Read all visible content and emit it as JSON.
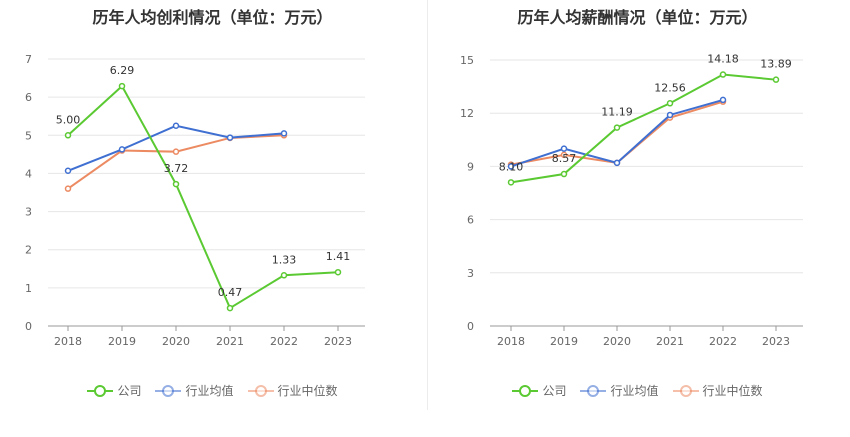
{
  "chart_data": [
    {
      "type": "line",
      "title": "历年人均创利情况（单位：万元）",
      "categories": [
        "2018",
        "2019",
        "2020",
        "2021",
        "2022",
        "2023"
      ],
      "ylim": [
        0,
        7
      ],
      "yticks": [
        "0",
        "1",
        "2",
        "3",
        "4",
        "5",
        "6",
        "7"
      ],
      "grid": true,
      "legend_position": "bottom",
      "series": [
        {
          "name": "公司",
          "color": "#5ac932",
          "values": [
            5.0,
            6.29,
            3.72,
            0.47,
            1.33,
            1.41
          ],
          "labels": [
            "5.00",
            "6.29",
            "3.72",
            "0.47",
            "1.33",
            "1.41"
          ]
        },
        {
          "name": "行业均值",
          "color": "#3f6fd1",
          "values": [
            4.07,
            4.63,
            5.25,
            4.94,
            5.05,
            null
          ]
        },
        {
          "name": "行业中位数",
          "color": "#ec8a62",
          "values": [
            3.6,
            4.6,
            4.57,
            4.93,
            5.0,
            null
          ]
        }
      ]
    },
    {
      "type": "line",
      "title": "历年人均薪酬情况（单位：万元）",
      "categories": [
        "2018",
        "2019",
        "2020",
        "2021",
        "2022",
        "2023"
      ],
      "ylim": [
        0,
        15
      ],
      "yticks": [
        "0",
        "3",
        "6",
        "9",
        "12",
        "15"
      ],
      "grid": true,
      "legend_position": "bottom",
      "series": [
        {
          "name": "公司",
          "color": "#5ac932",
          "values": [
            8.1,
            8.57,
            11.19,
            12.56,
            14.18,
            13.89
          ],
          "labels": [
            "8.10",
            "8.57",
            "11.19",
            "12.56",
            "14.18",
            "13.89"
          ]
        },
        {
          "name": "行业均值",
          "color": "#3f6fd1",
          "values": [
            9.0,
            10.0,
            9.2,
            11.9,
            12.75,
            null
          ]
        },
        {
          "name": "行业中位数",
          "color": "#ec8a62",
          "values": [
            9.1,
            9.65,
            9.2,
            11.75,
            12.65,
            null
          ]
        }
      ]
    }
  ]
}
